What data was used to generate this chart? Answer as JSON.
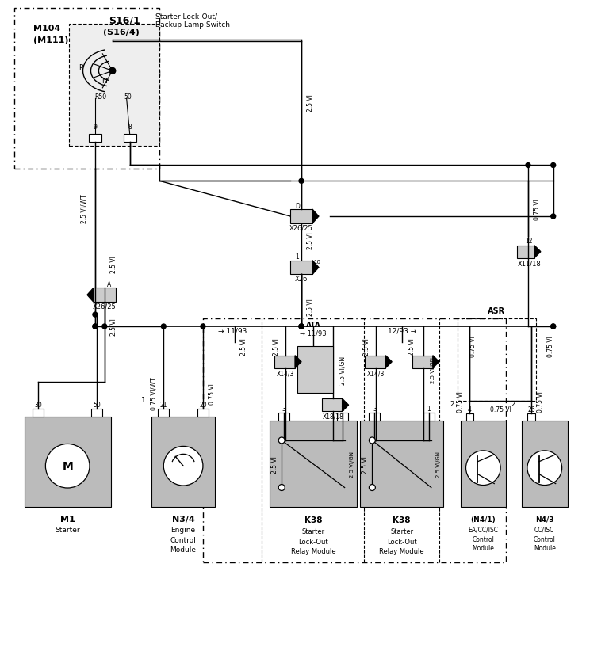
{
  "bg_color": "#ffffff",
  "line_color": "#000000",
  "component_bg": "#cccccc",
  "components": {
    "S16_label1": "S16/1",
    "S16_label2": "(S16/4)",
    "S16_label3": "Starter Lock-Out/\nBackup Lamp Switch",
    "M104_label1": "M104",
    "M104_label2": "(M111)",
    "M1_label1": "M1",
    "M1_label2": "Starter",
    "N34_label1": "N3/4",
    "N34_label2": "Engine\nControl\nModule",
    "K38L_label1": "K38",
    "K38L_label2": "Starter\nLock-Out\nRelay Module",
    "K38R_label1": "K38",
    "K38R_label2": "Starter\nLock-Out\nRelay Module",
    "N41_label1": "(N4/1)",
    "N41_label2": "EA/CC/ISC\nControl\nModule",
    "N43_label1": "N4/3",
    "N43_label2": "CC/ISC\nControl\nModule",
    "X2625_top_label": "X26/25",
    "X26_label": "X26",
    "X2625_mid_label": "X26/25",
    "X1118_label": "X11/18",
    "sec_left": "11/93",
    "sec_ata": "ATA",
    "sec_ata2": "11/93",
    "sec_right": "12/93",
    "ASR_label": "ASR"
  },
  "wire_labels": {
    "w_25VI": "2.5 VI",
    "w_25VIWT": "2.5 VI/WT",
    "w_075VIWT": "0.75 VI/WT",
    "w_075VI": "0.75 VI",
    "w_25VIGN": "2.5 VI/GN",
    "w_25VIIGN": "2.5 VI/GN"
  }
}
